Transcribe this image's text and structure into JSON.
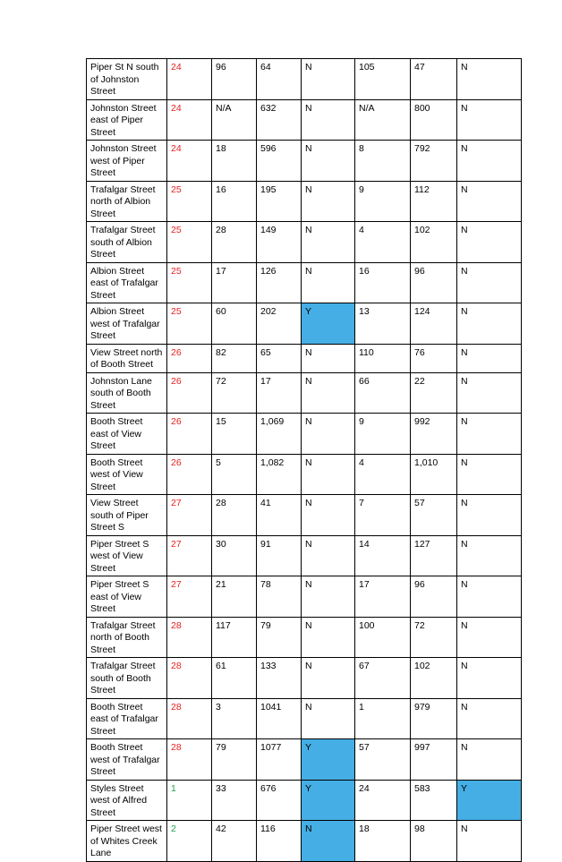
{
  "table": {
    "rows": [
      {
        "location": "Piper St N south of Johnston Street",
        "id": "24",
        "id_color": "red",
        "c1": "96",
        "c2": "64",
        "f1": "N",
        "f1_hl": false,
        "c3": "105",
        "c4": "47",
        "f2": "N",
        "f2_hl": false
      },
      {
        "location": "Johnston Street east of Piper Street",
        "id": "24",
        "id_color": "red",
        "c1": "N/A",
        "c2": "632",
        "f1": "N",
        "f1_hl": false,
        "c3": "N/A",
        "c4": "800",
        "f2": "N",
        "f2_hl": false
      },
      {
        "location": "Johnston Street west of Piper Street",
        "id": "24",
        "id_color": "red",
        "c1": "18",
        "c2": "596",
        "f1": "N",
        "f1_hl": false,
        "c3": "8",
        "c4": "792",
        "f2": "N",
        "f2_hl": false
      },
      {
        "location": "Trafalgar Street north of Albion Street",
        "id": "25",
        "id_color": "red",
        "c1": "16",
        "c2": "195",
        "f1": "N",
        "f1_hl": false,
        "c3": "9",
        "c4": "112",
        "f2": "N",
        "f2_hl": false
      },
      {
        "location": "Trafalgar Street south of Albion Street",
        "id": "25",
        "id_color": "red",
        "c1": "28",
        "c2": "149",
        "f1": "N",
        "f1_hl": false,
        "c3": "4",
        "c4": "102",
        "f2": "N",
        "f2_hl": false
      },
      {
        "location": "Albion Street east of Trafalgar Street",
        "id": "25",
        "id_color": "red",
        "c1": "17",
        "c2": "126",
        "f1": "N",
        "f1_hl": false,
        "c3": "16",
        "c4": "96",
        "f2": "N",
        "f2_hl": false
      },
      {
        "location": "Albion Street west of Trafalgar Street",
        "id": "25",
        "id_color": "red",
        "c1": "60",
        "c2": "202",
        "f1": "Y",
        "f1_hl": true,
        "c3": "13",
        "c4": "124",
        "f2": "N",
        "f2_hl": false
      },
      {
        "location": "View Street north of Booth Street",
        "id": "26",
        "id_color": "red",
        "c1": "82",
        "c2": "65",
        "f1": "N",
        "f1_hl": false,
        "c3": "110",
        "c4": "76",
        "f2": "N",
        "f2_hl": false
      },
      {
        "location": "Johnston Lane south of Booth Street",
        "id": "26",
        "id_color": "red",
        "c1": "72",
        "c2": "17",
        "f1": "N",
        "f1_hl": false,
        "c3": "66",
        "c4": "22",
        "f2": "N",
        "f2_hl": false
      },
      {
        "location": "Booth Street east of View Street",
        "id": "26",
        "id_color": "red",
        "c1": "15",
        "c2": "1,069",
        "f1": "N",
        "f1_hl": false,
        "c3": "9",
        "c4": "992",
        "f2": "N",
        "f2_hl": false
      },
      {
        "location": "Booth Street west of View Street",
        "id": "26",
        "id_color": "red",
        "c1": "5",
        "c2": "1,082",
        "f1": "N",
        "f1_hl": false,
        "c3": "4",
        "c4": "1,010",
        "f2": "N",
        "f2_hl": false
      },
      {
        "location": "View Street south of Piper Street S",
        "id": "27",
        "id_color": "red",
        "c1": "28",
        "c2": "41",
        "f1": "N",
        "f1_hl": false,
        "c3": "7",
        "c4": "57",
        "f2": "N",
        "f2_hl": false
      },
      {
        "location": "Piper Street S west of View Street",
        "id": "27",
        "id_color": "red",
        "c1": "30",
        "c2": "91",
        "f1": "N",
        "f1_hl": false,
        "c3": "14",
        "c4": "127",
        "f2": "N",
        "f2_hl": false
      },
      {
        "location": "Piper Street S east of View Street",
        "id": "27",
        "id_color": "red",
        "c1": "21",
        "c2": "78",
        "f1": "N",
        "f1_hl": false,
        "c3": "17",
        "c4": "96",
        "f2": "N",
        "f2_hl": false
      },
      {
        "location": "Trafalgar Street north of Booth Street",
        "id": "28",
        "id_color": "red",
        "c1": "117",
        "c2": "79",
        "f1": "N",
        "f1_hl": false,
        "c3": "100",
        "c4": "72",
        "f2": "N",
        "f2_hl": false
      },
      {
        "location": "Trafalgar Street south of Booth Street",
        "id": "28",
        "id_color": "red",
        "c1": "61",
        "c2": "133",
        "f1": "N",
        "f1_hl": false,
        "c3": "67",
        "c4": "102",
        "f2": "N",
        "f2_hl": false
      },
      {
        "location": "Booth Street east of Trafalgar Street",
        "id": "28",
        "id_color": "red",
        "c1": "3",
        "c2": "1041",
        "f1": "N",
        "f1_hl": false,
        "c3": "1",
        "c4": "979",
        "f2": "N",
        "f2_hl": false
      },
      {
        "location": "Booth Street west of Trafalgar Street",
        "id": "28",
        "id_color": "red",
        "c1": "79",
        "c2": "1077",
        "f1": "Y",
        "f1_hl": true,
        "c3": "57",
        "c4": "997",
        "f2": "N",
        "f2_hl": false
      },
      {
        "location": "Styles Street west of Alfred Street",
        "id": "1",
        "id_color": "green",
        "c1": "33",
        "c2": "676",
        "f1": "Y",
        "f1_hl": true,
        "c3": "24",
        "c4": "583",
        "f2": "Y",
        "f2_hl": true
      },
      {
        "location": "Piper Street west of Whites Creek Lane",
        "id": "2",
        "id_color": "green",
        "c1": "42",
        "c2": "116",
        "f1": "N",
        "f1_hl": true,
        "c3": "18",
        "c4": "98",
        "f2": "N",
        "f2_hl": false
      }
    ]
  }
}
